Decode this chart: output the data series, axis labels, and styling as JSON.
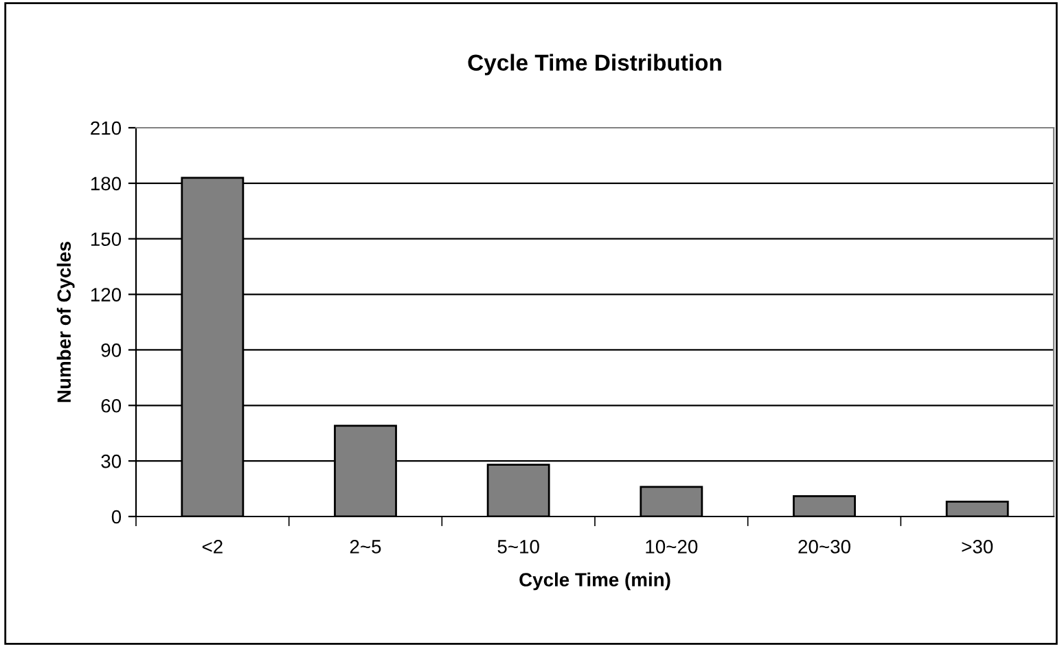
{
  "chart_data": {
    "type": "bar",
    "title": "Cycle Time Distribution",
    "xlabel": "Cycle Time (min)",
    "ylabel": "Number of Cycles",
    "categories": [
      "<2",
      "2~5",
      "5~10",
      "10~20",
      "20~30",
      ">30"
    ],
    "values": [
      183,
      49,
      28,
      16,
      11,
      8
    ],
    "color": "#808080",
    "ylim": [
      0,
      210
    ],
    "yticks": [
      0,
      30,
      60,
      90,
      120,
      150,
      180,
      210
    ],
    "grid": "y",
    "legend": false
  }
}
